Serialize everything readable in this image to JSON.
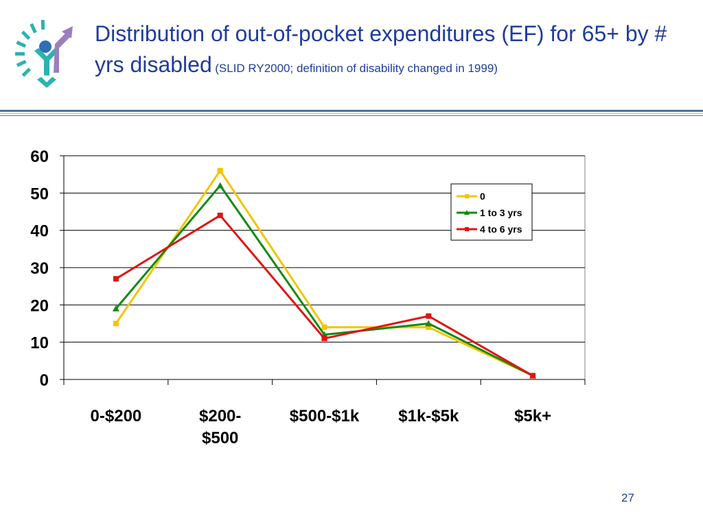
{
  "slide": {
    "title_main": "Distribution of out-of-pocket expenditures (EF) for 65+ by # yrs disabled",
    "title_sub": "(SLID RY2000; definition of disability changed in 1999)",
    "page_number": "27"
  },
  "colors": {
    "title": "#1f3c9c",
    "series_0": "#f5c400",
    "series_1": "#138a13",
    "series_2": "#e31313"
  },
  "chart_data": {
    "type": "line",
    "categories": [
      "0-$200",
      "$200-$500",
      "$500-$1k",
      "$1k-$5k",
      "$5k+"
    ],
    "category_lines": [
      [
        "0-$200"
      ],
      [
        "$200-",
        "$500"
      ],
      [
        "$500-$1k"
      ],
      [
        "$1k-$5k"
      ],
      [
        "$5k+"
      ]
    ],
    "series": [
      {
        "name": "0",
        "color": "#f5c400",
        "marker": "square",
        "values": [
          15,
          56,
          14,
          14,
          1
        ]
      },
      {
        "name": "1 to 3 yrs",
        "color": "#138a13",
        "marker": "triangle",
        "values": [
          19,
          52,
          12,
          15,
          1
        ]
      },
      {
        "name": "4 to 6 yrs",
        "color": "#e31313",
        "marker": "square",
        "values": [
          27,
          44,
          11,
          17,
          1
        ]
      }
    ],
    "ylim": [
      0,
      60
    ],
    "yticks": [
      0,
      10,
      20,
      30,
      40,
      50,
      60
    ],
    "grid": true,
    "legend_position": "top-right"
  }
}
